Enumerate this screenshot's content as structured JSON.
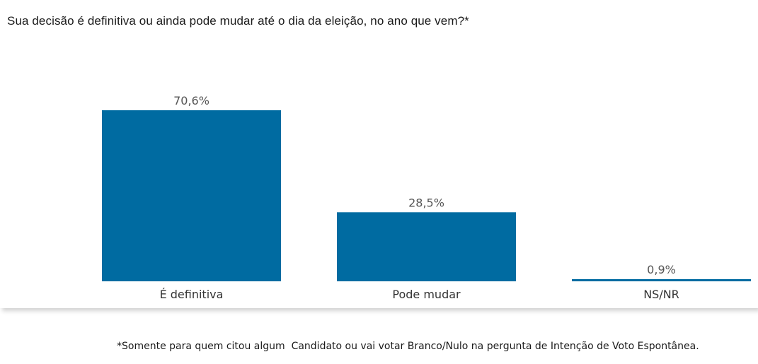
{
  "chart_data": {
    "type": "bar",
    "title": "Sua decisão é definitiva ou ainda pode mudar até o dia da eleição, no ano que vem?*",
    "categories": [
      "É definitiva",
      "Pode mudar",
      "NS/NR"
    ],
    "values": [
      70.6,
      28.5,
      0.9
    ],
    "value_labels": [
      "70,6%",
      "28,5%",
      "0,9%"
    ],
    "unit": "%",
    "ylim": [
      0,
      70.6
    ],
    "grid": false,
    "legend": "none",
    "bar_color": "#006ba1"
  },
  "footnote": "*Somente para quem citou algum  Candidato ou vai votar Branco/Nulo na pergunta de Intenção de Voto Espontânea."
}
